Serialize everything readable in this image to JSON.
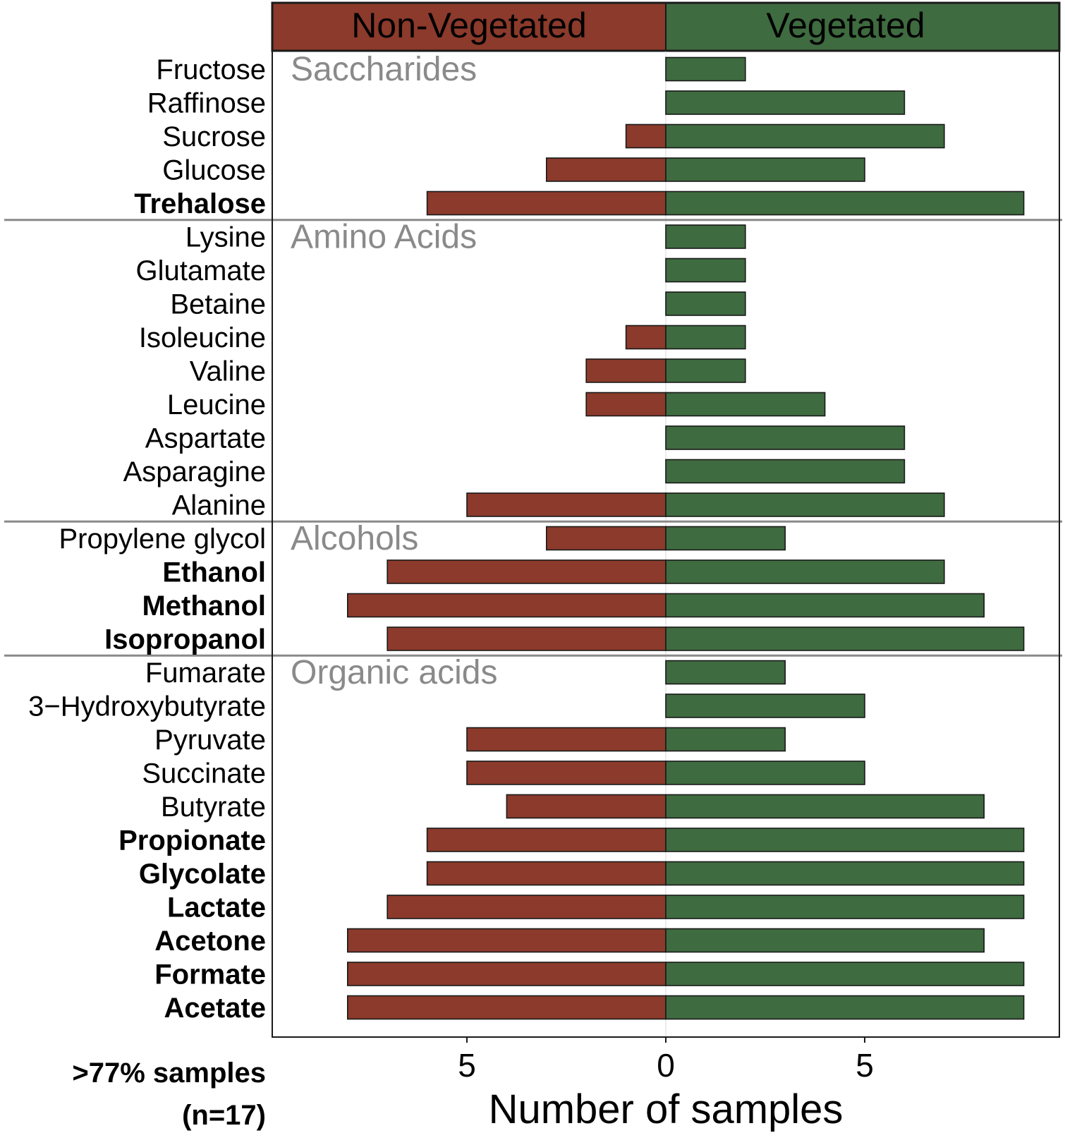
{
  "chart_data": {
    "type": "bar",
    "subtype": "diverging-horizontal",
    "header_labels": {
      "left": "Non-Vegetated",
      "right": "Vegetated"
    },
    "xlabel": "Number of samples",
    "x_ticks": [
      {
        "value": -5,
        "label": "5"
      },
      {
        "value": 0,
        "label": "0"
      },
      {
        "value": 5,
        "label": "5"
      }
    ],
    "xlim": [
      -9.9,
      9.9
    ],
    "footnote": [
      ">77% samples",
      "(n=17)"
    ],
    "colors": {
      "non_vegetated": "#8B3A2B",
      "vegetated": "#3E6B3F",
      "divider": "#8a8a8a",
      "group_label": "#8a8a8a"
    },
    "groups": [
      {
        "name": "Saccharides",
        "items": [
          {
            "label": "Fructose",
            "non_vegetated": 0,
            "vegetated": 2,
            "bold": false
          },
          {
            "label": "Raffinose",
            "non_vegetated": 0,
            "vegetated": 6,
            "bold": false
          },
          {
            "label": "Sucrose",
            "non_vegetated": 1,
            "vegetated": 7,
            "bold": false
          },
          {
            "label": "Glucose",
            "non_vegetated": 3,
            "vegetated": 5,
            "bold": false
          },
          {
            "label": "Trehalose",
            "non_vegetated": 6,
            "vegetated": 9,
            "bold": true
          }
        ]
      },
      {
        "name": "Amino Acids",
        "items": [
          {
            "label": "Lysine",
            "non_vegetated": 0,
            "vegetated": 2,
            "bold": false
          },
          {
            "label": "Glutamate",
            "non_vegetated": 0,
            "vegetated": 2,
            "bold": false
          },
          {
            "label": "Betaine",
            "non_vegetated": 0,
            "vegetated": 2,
            "bold": false
          },
          {
            "label": "Isoleucine",
            "non_vegetated": 1,
            "vegetated": 2,
            "bold": false
          },
          {
            "label": "Valine",
            "non_vegetated": 2,
            "vegetated": 2,
            "bold": false
          },
          {
            "label": "Leucine",
            "non_vegetated": 2,
            "vegetated": 4,
            "bold": false
          },
          {
            "label": "Aspartate",
            "non_vegetated": 0,
            "vegetated": 6,
            "bold": false
          },
          {
            "label": "Asparagine",
            "non_vegetated": 0,
            "vegetated": 6,
            "bold": false
          },
          {
            "label": "Alanine",
            "non_vegetated": 5,
            "vegetated": 7,
            "bold": false
          }
        ]
      },
      {
        "name": "Alcohols",
        "items": [
          {
            "label": "Propylene glycol",
            "non_vegetated": 3,
            "vegetated": 3,
            "bold": false
          },
          {
            "label": "Ethanol",
            "non_vegetated": 7,
            "vegetated": 7,
            "bold": true
          },
          {
            "label": "Methanol",
            "non_vegetated": 8,
            "vegetated": 8,
            "bold": true
          },
          {
            "label": "Isopropanol",
            "non_vegetated": 7,
            "vegetated": 9,
            "bold": true
          }
        ]
      },
      {
        "name": "Organic acids",
        "items": [
          {
            "label": "Fumarate",
            "non_vegetated": 0,
            "vegetated": 3,
            "bold": false
          },
          {
            "label": "3−Hydroxybutyrate",
            "non_vegetated": 0,
            "vegetated": 5,
            "bold": false
          },
          {
            "label": "Pyruvate",
            "non_vegetated": 5,
            "vegetated": 3,
            "bold": false
          },
          {
            "label": "Succinate",
            "non_vegetated": 5,
            "vegetated": 5,
            "bold": false
          },
          {
            "label": "Butyrate",
            "non_vegetated": 4,
            "vegetated": 8,
            "bold": false
          },
          {
            "label": "Propionate",
            "non_vegetated": 6,
            "vegetated": 9,
            "bold": true
          },
          {
            "label": "Glycolate",
            "non_vegetated": 6,
            "vegetated": 9,
            "bold": true
          },
          {
            "label": "Lactate",
            "non_vegetated": 7,
            "vegetated": 9,
            "bold": true
          },
          {
            "label": "Acetone",
            "non_vegetated": 8,
            "vegetated": 8,
            "bold": true
          },
          {
            "label": "Formate",
            "non_vegetated": 8,
            "vegetated": 9,
            "bold": true
          },
          {
            "label": "Acetate",
            "non_vegetated": 8,
            "vegetated": 9,
            "bold": true
          }
        ]
      }
    ]
  }
}
